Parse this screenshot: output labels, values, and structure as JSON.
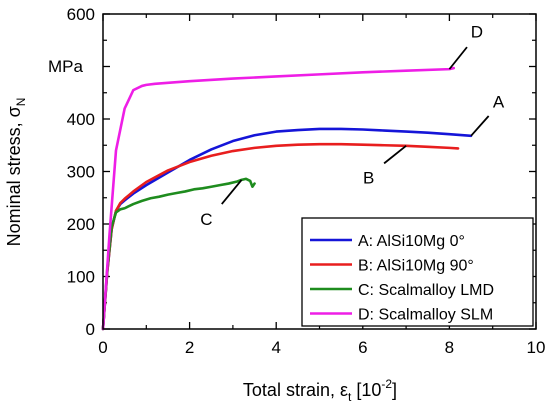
{
  "chart_data": {
    "type": "line",
    "xlabel": "Total strain, εt [10⁻²]",
    "ylabel": "Nominal stress, σN",
    "x_axis": {
      "title": "Total strain, ",
      "symbol": "ε",
      "subscript": "t",
      "unit_open": " [10",
      "unit_exp": "-2",
      "unit_close": "]"
    },
    "y_axis": {
      "title": "Nominal stress, ",
      "symbol": "σ",
      "subscript": "N",
      "unit_label": "MPa"
    },
    "xlim": [
      0,
      10
    ],
    "ylim": [
      0,
      600
    ],
    "x_ticks": [
      0,
      2,
      4,
      6,
      8,
      10
    ],
    "y_ticks": [
      0,
      100,
      200,
      300,
      400,
      500,
      600
    ],
    "grid": false,
    "legend_position": "bottom-right",
    "series": [
      {
        "id": "A",
        "name": "A: AlSi10Mg 0°",
        "color": "#1515d8",
        "x": [
          0,
          0.1,
          0.2,
          0.3,
          0.4,
          0.5,
          0.7,
          1.0,
          1.5,
          2.0,
          2.5,
          3.0,
          3.5,
          4.0,
          4.5,
          5.0,
          5.5,
          6.0,
          6.5,
          7.0,
          7.5,
          8.0,
          8.5
        ],
        "y": [
          0,
          110,
          190,
          225,
          238,
          245,
          258,
          274,
          298,
          322,
          342,
          358,
          369,
          376,
          379,
          381,
          381,
          380,
          378,
          376,
          374,
          371,
          368
        ]
      },
      {
        "id": "B",
        "name": "B: AlSi10Mg 90°",
        "color": "#e81e1e",
        "x": [
          0,
          0.1,
          0.2,
          0.3,
          0.4,
          0.5,
          0.7,
          1.0,
          1.5,
          2.0,
          2.5,
          3.0,
          3.5,
          4.0,
          4.5,
          5.0,
          5.5,
          6.0,
          6.5,
          7.0,
          7.5,
          8.0,
          8.2
        ],
        "y": [
          0,
          110,
          190,
          225,
          240,
          248,
          262,
          280,
          302,
          318,
          330,
          339,
          345,
          349,
          351,
          352,
          352,
          351,
          350,
          349,
          347,
          345,
          344
        ]
      },
      {
        "id": "C",
        "name": "C: Scalmalloy LMD",
        "color": "#1e8c1e",
        "x": [
          0,
          0.1,
          0.2,
          0.3,
          0.4,
          0.5,
          0.7,
          0.9,
          1.1,
          1.3,
          1.5,
          1.7,
          1.9,
          2.1,
          2.3,
          2.5,
          2.7,
          2.9,
          3.1,
          3.2,
          3.3,
          3.4,
          3.45,
          3.5
        ],
        "y": [
          0,
          115,
          195,
          222,
          228,
          230,
          238,
          244,
          249,
          252,
          256,
          259,
          262,
          266,
          268,
          271,
          274,
          277,
          281,
          284,
          286,
          282,
          271,
          277
        ]
      },
      {
        "id": "D",
        "name": "D: Scalmalloy SLM",
        "color": "#ee1ee6",
        "x": [
          0,
          0.15,
          0.3,
          0.5,
          0.7,
          0.9,
          1.0,
          1.2,
          1.5,
          2.0,
          3.0,
          4.0,
          5.0,
          6.0,
          7.0,
          8.0,
          8.1
        ],
        "y": [
          0,
          180,
          340,
          420,
          455,
          463,
          465,
          467,
          469,
          472,
          477,
          481,
          485,
          489,
          492,
          495,
          497
        ]
      }
    ],
    "annotations": [
      {
        "label": "A",
        "series": "A"
      },
      {
        "label": "B",
        "series": "B"
      },
      {
        "label": "C",
        "series": "C"
      },
      {
        "label": "D",
        "series": "D"
      }
    ]
  }
}
